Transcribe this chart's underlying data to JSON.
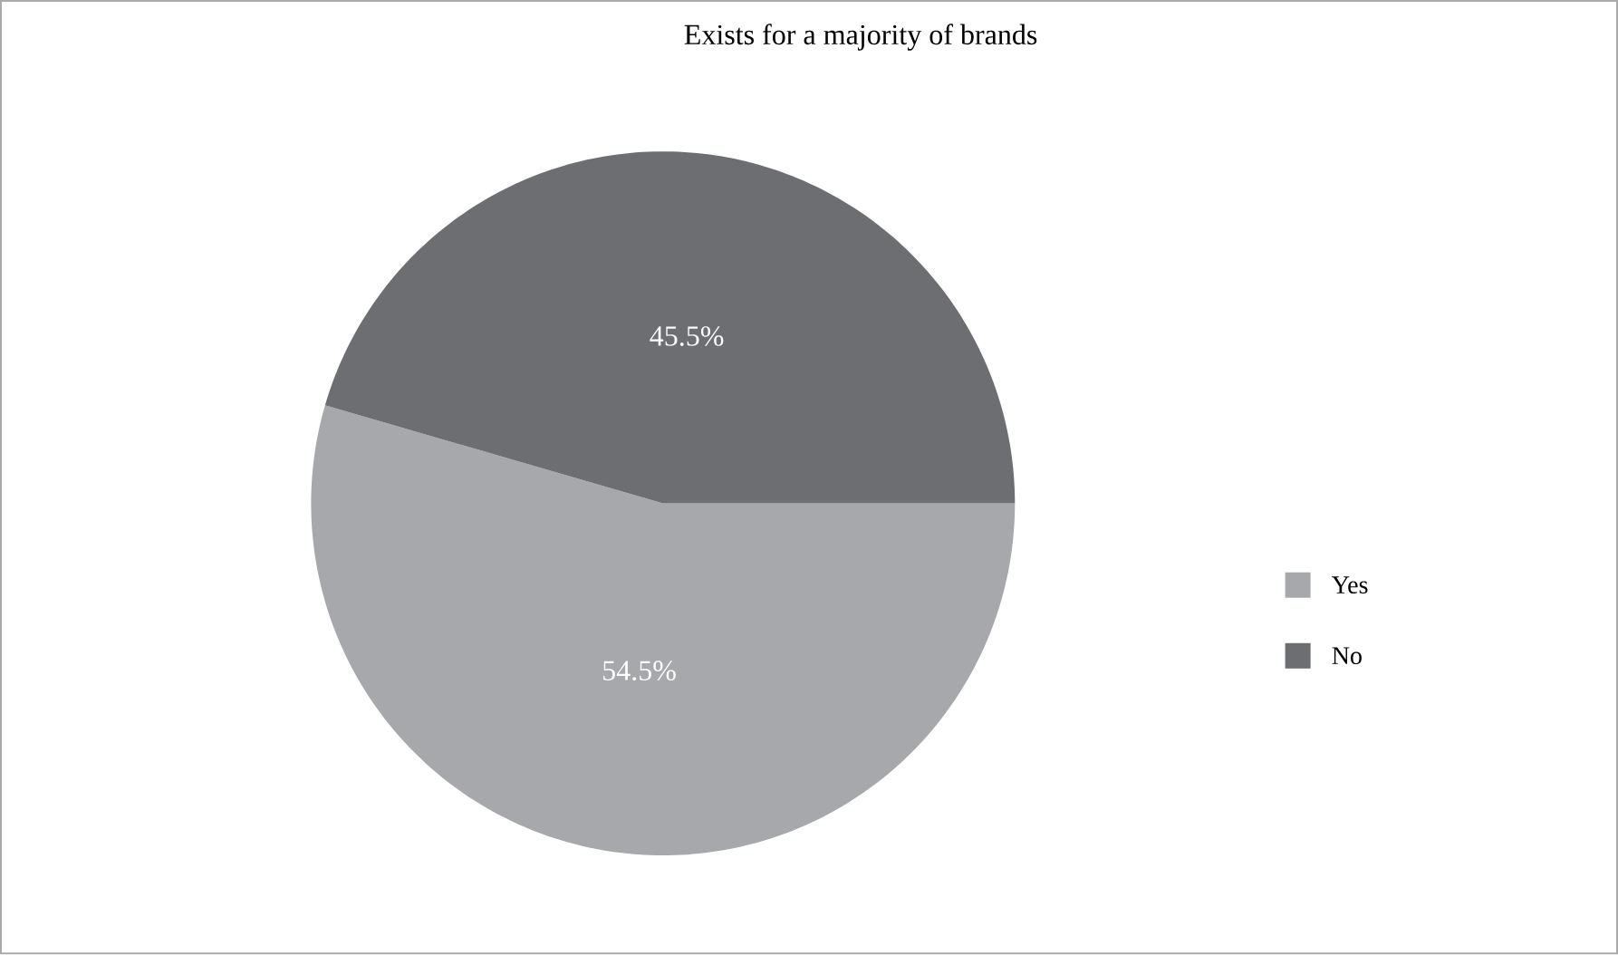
{
  "chart_data": {
    "type": "pie",
    "title": "Exists for a majority of brands",
    "categories": [
      "Yes",
      "No"
    ],
    "values": [
      54.5,
      45.5
    ],
    "colors": [
      "#a7a8ab",
      "#6d6e71"
    ],
    "value_labels": [
      "54.5%",
      "45.5%"
    ],
    "legend": "right"
  }
}
